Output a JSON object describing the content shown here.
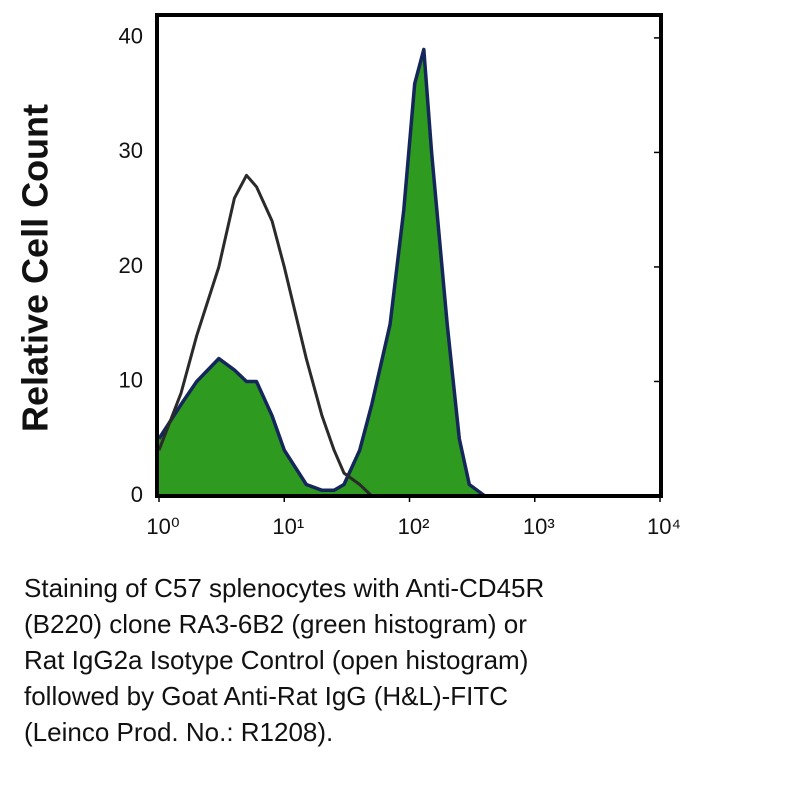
{
  "chart_data": {
    "type": "area",
    "ylabel": "Relative Cell Count",
    "x": [
      1,
      1.5,
      2,
      3,
      4,
      5,
      6,
      8,
      10,
      15,
      20,
      25,
      30,
      40,
      50,
      70,
      90,
      110,
      130,
      150,
      200,
      250,
      300,
      400,
      1000,
      10000
    ],
    "series": [
      {
        "name": "Anti-CD45R (B220)",
        "color": "#2e9a1f",
        "edgecolor": "#15275a",
        "fill": true,
        "values": [
          5,
          8,
          10,
          12,
          11,
          10,
          10,
          7,
          4,
          1,
          0.5,
          0.5,
          1,
          4,
          8,
          15,
          25,
          36,
          39,
          30,
          15,
          5,
          1,
          0,
          0,
          0
        ]
      },
      {
        "name": "Rat IgG2a Isotype Control",
        "color": "#2a2a2a",
        "fill": false,
        "values": [
          4,
          9,
          14,
          20,
          26,
          28,
          27,
          24,
          20,
          12,
          7,
          4,
          2,
          1,
          0,
          0,
          0,
          0,
          0,
          0,
          0,
          0,
          0,
          0,
          0,
          0
        ]
      }
    ],
    "xscale": "log",
    "xlim": [
      1,
      10000
    ],
    "xticks": [
      {
        "value": 1,
        "label": "10⁰"
      },
      {
        "value": 10,
        "label": "10¹"
      },
      {
        "value": 100,
        "label": "10²"
      },
      {
        "value": 1000,
        "label": "10³"
      },
      {
        "value": 10000,
        "label": "10⁴"
      }
    ],
    "ylim": [
      0,
      42
    ],
    "yticks": [
      0,
      10,
      20,
      30,
      40
    ],
    "caption": [
      "Staining of C57 splenocytes with Anti-CD45R",
      "(B220) clone RA3-6B2 (green histogram) or",
      "Rat IgG2a Isotype Control (open histogram)",
      "followed by Goat Anti-Rat IgG (H&L)-FITC",
      "(Leinco Prod. No.: R1208)."
    ]
  }
}
